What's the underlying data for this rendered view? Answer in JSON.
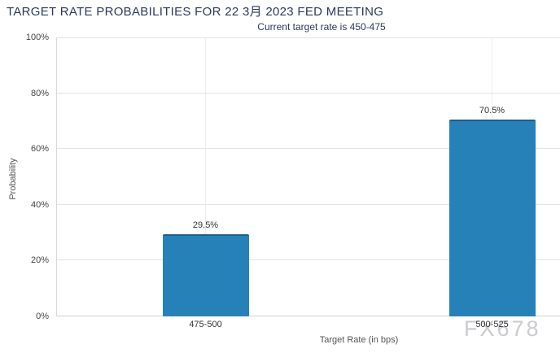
{
  "header": {
    "title": "TARGET RATE PROBABILITIES FOR 22 3月 2023 FED MEETING",
    "subtitle": "Current target rate is 450-475"
  },
  "chart_data": {
    "type": "bar",
    "title": "TARGET RATE PROBABILITIES FOR 22 3月 2023 FED MEETING",
    "subtitle": "Current target rate is 450-475",
    "categories": [
      "475-500",
      "500-525"
    ],
    "values": [
      29.5,
      70.5
    ],
    "value_labels": [
      "29.5%",
      "70.5%"
    ],
    "xlabel": "Target Rate (in bps)",
    "ylabel": "Probability",
    "ylim": [
      0,
      100
    ],
    "yticks": [
      0,
      20,
      40,
      60,
      80,
      100
    ],
    "ytick_labels": [
      "0%",
      "20%",
      "40%",
      "60%",
      "80%",
      "100%"
    ],
    "grid": true,
    "legend": "none",
    "bar_color": "#2781b9",
    "bar_border_color": "#1a5f8e"
  },
  "watermark": "FX678",
  "colors": {
    "title_text": "#2b3a5c",
    "axis_text": "#555555",
    "tick_text": "#444444",
    "label_text": "#333333",
    "grid": "#e4e4e4",
    "axis_line": "#cfcfcf",
    "watermark": "#cbcbcf"
  }
}
